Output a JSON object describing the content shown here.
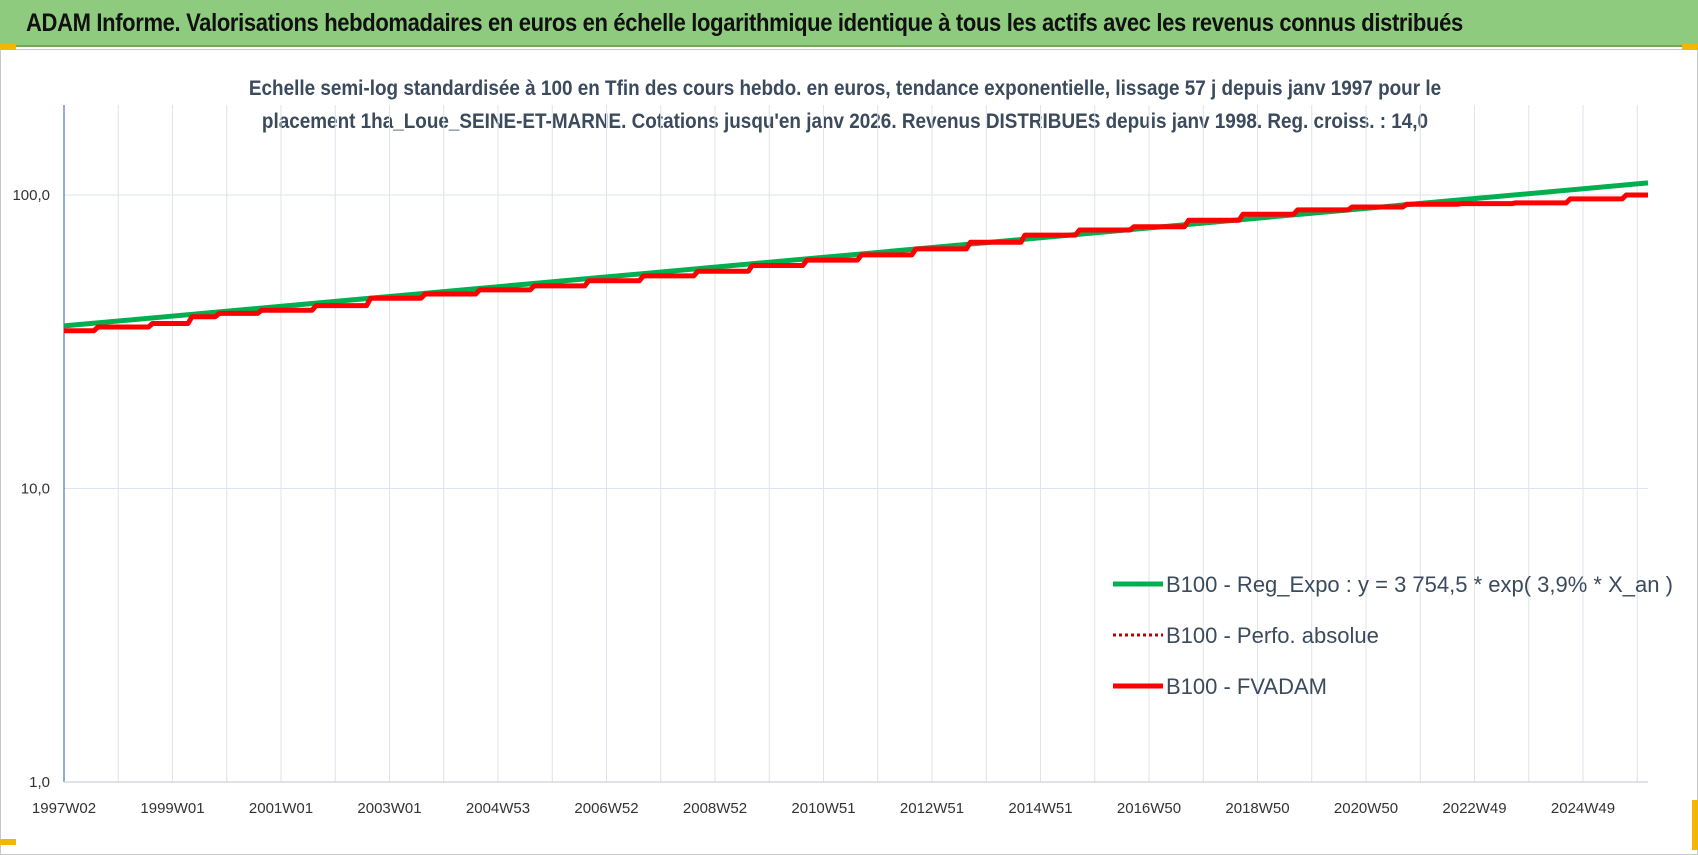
{
  "banner": {
    "title": "ADAM Informe. Valorisations hebdomadaires en euros en échelle logarithmique identique à tous les actifs avec les revenus connus distribués"
  },
  "colors": {
    "banner_bg": "#8fcb7e",
    "reg_expo": "#00b050",
    "perfo_absolue": "#c00000",
    "fvadam": "#ff0000",
    "grid": "#dde4ec",
    "axis": "#4a78b8",
    "accent_corner": "#f2b705"
  },
  "chart_data": {
    "type": "line",
    "title_line1": "Echelle semi-log standardisée à 100 en Tfin des cours hebdo. en euros, tendance exponentielle, lissage 57 j depuis janv 1997 pour le",
    "title_line2": "placement 1ha_Loue_SEINE-ET-MARNE. Cotations jusqu'en janv 2026. Revenus DISTRIBUES depuis janv 1998. Reg. croiss. : 14,0",
    "y_scale": "log",
    "ylim": [
      1,
      100
    ],
    "y_ticks": [
      {
        "value": 100,
        "label": "100,0"
      },
      {
        "value": 10,
        "label": "10,0"
      },
      {
        "value": 1,
        "label": "1,0"
      }
    ],
    "xlim": [
      1997.0,
      2026.05
    ],
    "x_tick_labels": [
      "1997W02",
      "1999W01",
      "2001W01",
      "2003W01",
      "2004W53",
      "2006W52",
      "2008W52",
      "2010W51",
      "2012W51",
      "2014W51",
      "2016W50",
      "2018W50",
      "2020W50",
      "2022W49",
      "2024W49"
    ],
    "grid": true,
    "legend_position": "right",
    "series": [
      {
        "name": "B100 - Reg_Expo : y = 3 754,5 * exp( 3,9% *  X_an )",
        "style": "solid-green",
        "x": [
          1997.0,
          2026.05
        ],
        "y": [
          35.8,
          110.0
        ]
      },
      {
        "name": "B100 - Perfo. absolue",
        "style": "dotted-darkred",
        "x": [],
        "y": []
      },
      {
        "name": "B100 - FVADAM",
        "style": "solid-red",
        "x": [
          1997.0,
          1998.0,
          1999.0,
          1999.5,
          2000.0,
          2001.0,
          2002.0,
          2003.0,
          2004.0,
          2005.0,
          2006.0,
          2007.0,
          2008.0,
          2009.0,
          2010.0,
          2011.0,
          2012.0,
          2013.0,
          2014.0,
          2015.0,
          2016.0,
          2017.0,
          2018.0,
          2019.0,
          2020.0,
          2021.0,
          2022.0,
          2023.0,
          2024.0,
          2025.0,
          2026.05
        ],
        "y": [
          34.5,
          35.5,
          36.5,
          38.5,
          39.5,
          40.5,
          42.0,
          44.5,
          46.0,
          47.5,
          49.0,
          51.0,
          53.0,
          55.0,
          57.5,
          60.0,
          62.5,
          65.5,
          69.0,
          73.0,
          76.0,
          78.0,
          82.0,
          86.0,
          89.0,
          91.0,
          93.0,
          93.5,
          94.0,
          97.0,
          100.0
        ]
      }
    ]
  }
}
